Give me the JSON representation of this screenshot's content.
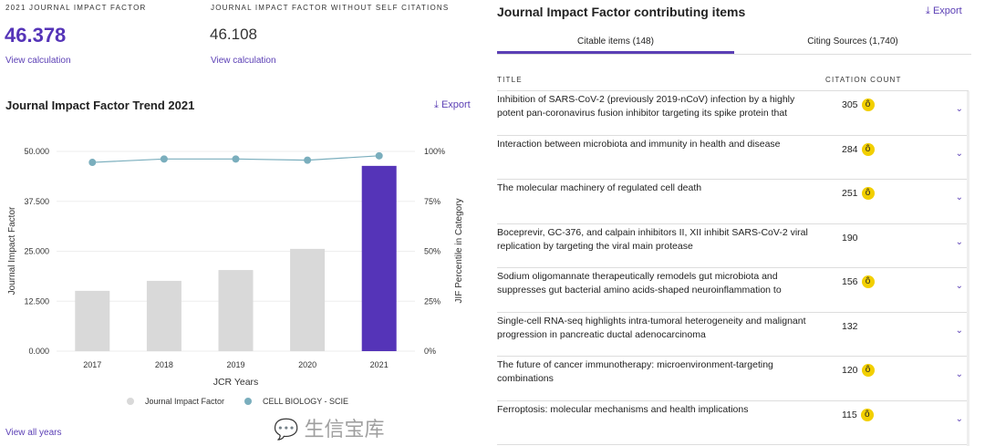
{
  "jif": {
    "label": "2021 Journal Impact Factor",
    "value": "46.378",
    "link": "View calculation"
  },
  "jif_no_self": {
    "label": "Journal Impact Factor without self citations",
    "value": "46.108",
    "link": "View calculation"
  },
  "trend": {
    "title": "Journal Impact Factor Trend 2021",
    "export": "Export",
    "view_all": "View all years"
  },
  "chart_data": {
    "type": "bar",
    "title": "Journal Impact Factor Trend 2021",
    "xlabel": "JCR Years",
    "ylabel": "Journal Impact Factor",
    "y2label": "JIF Percentile in Category",
    "categories": [
      "2017",
      "2018",
      "2019",
      "2020",
      "2021"
    ],
    "series": [
      {
        "name": "Journal Impact Factor",
        "type": "bar",
        "values": [
          15.1,
          17.6,
          20.3,
          25.6,
          46.378
        ],
        "colors": [
          "#d9d9d9",
          "#d9d9d9",
          "#d9d9d9",
          "#d9d9d9",
          "#5534b8"
        ]
      },
      {
        "name": "CELL BIOLOGY - SCIE",
        "type": "line",
        "axis": "right",
        "values": [
          94.5,
          96.2,
          96.2,
          95.6,
          97.8
        ],
        "color": "#7aaebd"
      }
    ],
    "yticks": [
      "0.000",
      "12.500",
      "25.000",
      "37.500",
      "50.000"
    ],
    "y2ticks": [
      "0%",
      "25%",
      "50%",
      "75%",
      "100%"
    ],
    "ylim": [
      0,
      50
    ],
    "y2lim": [
      0,
      100
    ],
    "legend": "bottom"
  },
  "items": {
    "title": "Journal Impact Factor contributing items",
    "export": "Export",
    "tabs": [
      {
        "label": "Citable items (148)"
      },
      {
        "label": "Citing Sources (1,740)"
      }
    ],
    "col_title": "TITLE",
    "col_count": "CITATION COUNT",
    "rows": [
      {
        "title": "Inhibition of SARS-CoV-2 (previously 2019-nCoV) infection by a highly potent pan-coronavirus fusion inhibitor targeting its spike protein that",
        "count": "305",
        "oa": true
      },
      {
        "title": "Interaction between microbiota and immunity in health and disease",
        "count": "284",
        "oa": true
      },
      {
        "title": "The molecular machinery of regulated cell death",
        "count": "251",
        "oa": true
      },
      {
        "title": "Boceprevir, GC-376, and calpain inhibitors II, XII inhibit SARS-CoV-2 viral replication by targeting the viral main protease",
        "count": "190",
        "oa": false
      },
      {
        "title": "Sodium oligomannate therapeutically remodels gut microbiota and suppresses gut bacterial amino acids-shaped neuroinflammation to",
        "count": "156",
        "oa": true
      },
      {
        "title": "Single-cell RNA-seq highlights intra-tumoral heterogeneity and malignant progression in pancreatic ductal adenocarcinoma",
        "count": "132",
        "oa": false
      },
      {
        "title": "The future of cancer immunotherapy: microenvironment-targeting combinations",
        "count": "120",
        "oa": true
      },
      {
        "title": "Ferroptosis: molecular mechanisms and health implications",
        "count": "115",
        "oa": true
      }
    ]
  },
  "watermark": "生信宝库"
}
